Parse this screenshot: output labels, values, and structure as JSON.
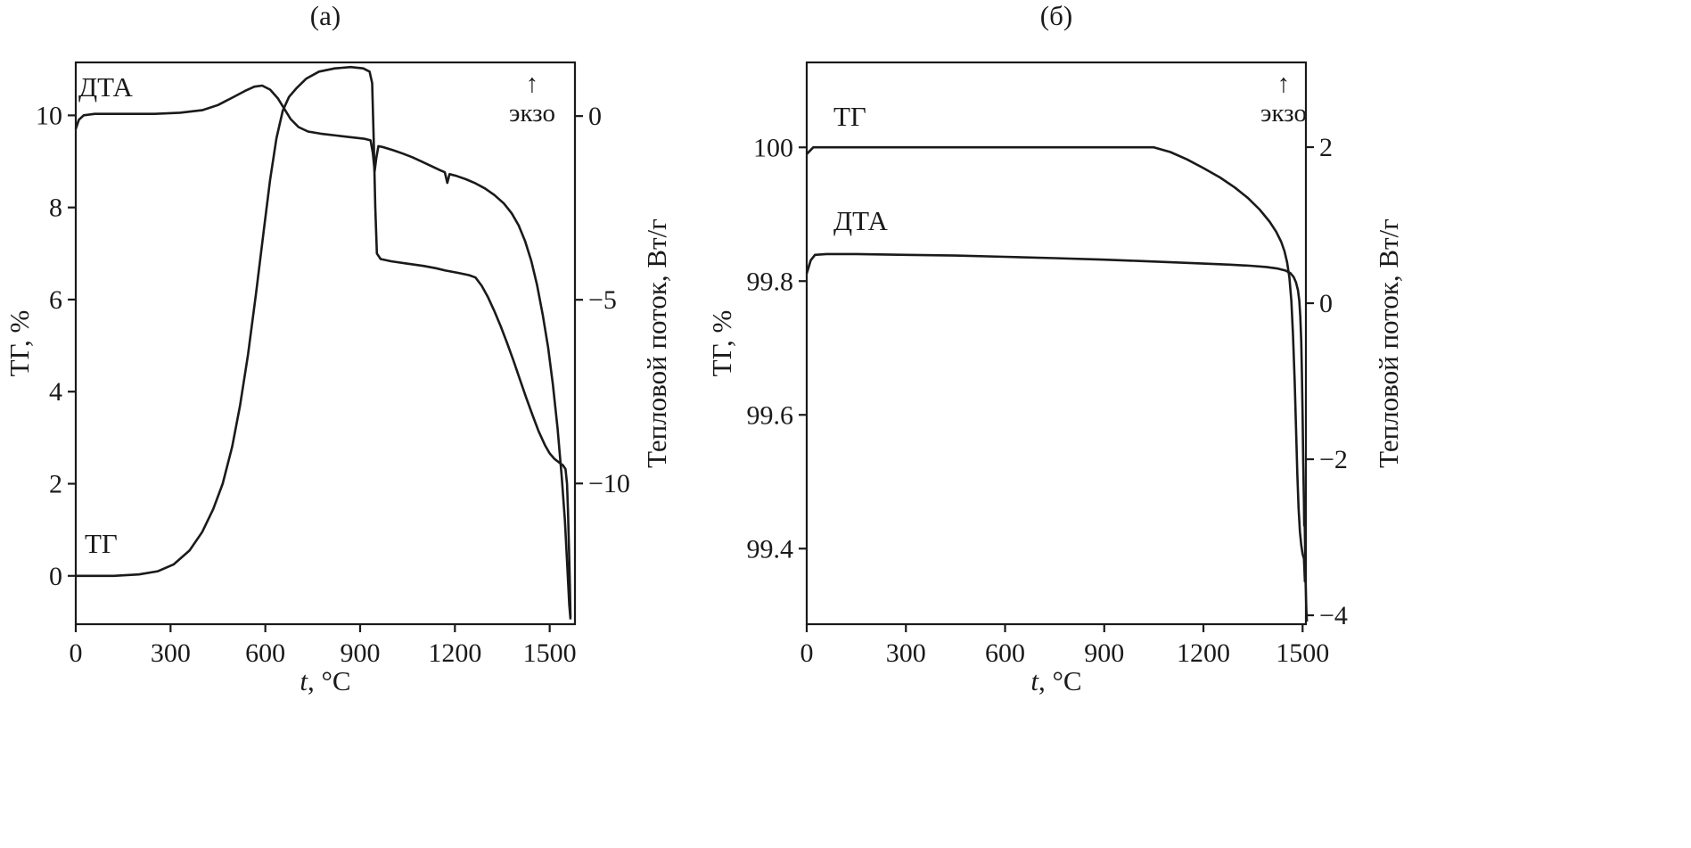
{
  "styles": {
    "line_color": "#1a1a1a",
    "axis_color": "#1a1a1a",
    "text_color": "#1a1a1a",
    "background": "#ffffff"
  },
  "chart_data": [
    {
      "id": "a",
      "type": "line",
      "title": "(а)",
      "x_axis": {
        "label_var": "t",
        "label_unit": ", °C",
        "lim": [
          0,
          1580
        ],
        "ticks": [
          {
            "value": 0,
            "label": "0"
          },
          {
            "value": 300,
            "label": "300"
          },
          {
            "value": 600,
            "label": "600"
          },
          {
            "value": 900,
            "label": "900"
          },
          {
            "value": 1200,
            "label": "1200"
          },
          {
            "value": 1500,
            "label": "1500"
          }
        ]
      },
      "y_left": {
        "label": "ТГ, %",
        "lim": [
          -1.05,
          11.15
        ],
        "ticks": [
          {
            "value": 0,
            "label": "0"
          },
          {
            "value": 2,
            "label": "2"
          },
          {
            "value": 4,
            "label": "4"
          },
          {
            "value": 6,
            "label": "6"
          },
          {
            "value": 8,
            "label": "8"
          },
          {
            "value": 10,
            "label": "10"
          }
        ]
      },
      "y_right": {
        "label": "Тепловой поток, Вт/г",
        "lim": [
          -13.83,
          1.46
        ],
        "exo_arrow": "↑",
        "exo_label": "экзо",
        "ticks": [
          {
            "value": 0,
            "label": "0"
          },
          {
            "value": -5,
            "label": "−5"
          },
          {
            "value": -10,
            "label": "−10"
          }
        ]
      },
      "curve_labels": [
        {
          "text": "ДТА"
        },
        {
          "text": "ТГ"
        }
      ],
      "series": [
        {
          "name": "ТГ",
          "axis": "left",
          "points": [
            [
              0,
              0
            ],
            [
              120,
              0
            ],
            [
              200,
              0.03
            ],
            [
              260,
              0.1
            ],
            [
              310,
              0.25
            ],
            [
              360,
              0.55
            ],
            [
              400,
              0.95
            ],
            [
              435,
              1.45
            ],
            [
              465,
              2.0
            ],
            [
              495,
              2.8
            ],
            [
              520,
              3.7
            ],
            [
              545,
              4.8
            ],
            [
              570,
              6.1
            ],
            [
              595,
              7.5
            ],
            [
              615,
              8.6
            ],
            [
              635,
              9.5
            ],
            [
              655,
              10.1
            ],
            [
              675,
              10.4
            ],
            [
              700,
              10.6
            ],
            [
              730,
              10.8
            ],
            [
              770,
              10.95
            ],
            [
              820,
              11.02
            ],
            [
              870,
              11.05
            ],
            [
              910,
              11.02
            ],
            [
              930,
              10.95
            ],
            [
              938,
              10.7
            ],
            [
              943,
              9.5
            ],
            [
              948,
              8.0
            ],
            [
              953,
              7.0
            ],
            [
              965,
              6.88
            ],
            [
              1000,
              6.83
            ],
            [
              1050,
              6.78
            ],
            [
              1100,
              6.73
            ],
            [
              1140,
              6.68
            ],
            [
              1170,
              6.63
            ],
            [
              1210,
              6.58
            ],
            [
              1245,
              6.53
            ],
            [
              1265,
              6.48
            ],
            [
              1285,
              6.3
            ],
            [
              1305,
              6.05
            ],
            [
              1325,
              5.75
            ],
            [
              1345,
              5.42
            ],
            [
              1365,
              5.06
            ],
            [
              1385,
              4.68
            ],
            [
              1405,
              4.28
            ],
            [
              1425,
              3.88
            ],
            [
              1445,
              3.5
            ],
            [
              1465,
              3.14
            ],
            [
              1485,
              2.84
            ],
            [
              1500,
              2.66
            ],
            [
              1515,
              2.54
            ],
            [
              1530,
              2.46
            ],
            [
              1542,
              2.4
            ],
            [
              1550,
              2.32
            ],
            [
              1555,
              2.0
            ],
            [
              1558,
              1.4
            ],
            [
              1561,
              0.6
            ],
            [
              1564,
              -0.2
            ],
            [
              1566,
              -0.9
            ]
          ]
        },
        {
          "name": "ДТА",
          "axis": "right",
          "points": [
            [
              0,
              -0.35
            ],
            [
              10,
              -0.1
            ],
            [
              25,
              0.02
            ],
            [
              60,
              0.06
            ],
            [
              150,
              0.06
            ],
            [
              250,
              0.06
            ],
            [
              330,
              0.09
            ],
            [
              400,
              0.16
            ],
            [
              450,
              0.3
            ],
            [
              495,
              0.5
            ],
            [
              535,
              0.68
            ],
            [
              565,
              0.8
            ],
            [
              590,
              0.83
            ],
            [
              615,
              0.72
            ],
            [
              640,
              0.48
            ],
            [
              660,
              0.2
            ],
            [
              680,
              -0.08
            ],
            [
              705,
              -0.3
            ],
            [
              735,
              -0.42
            ],
            [
              775,
              -0.48
            ],
            [
              825,
              -0.53
            ],
            [
              875,
              -0.58
            ],
            [
              915,
              -0.62
            ],
            [
              933,
              -0.66
            ],
            [
              940,
              -1.0
            ],
            [
              946,
              -1.5
            ],
            [
              951,
              -1.15
            ],
            [
              958,
              -0.82
            ],
            [
              975,
              -0.85
            ],
            [
              1005,
              -0.93
            ],
            [
              1035,
              -1.02
            ],
            [
              1065,
              -1.12
            ],
            [
              1095,
              -1.24
            ],
            [
              1125,
              -1.36
            ],
            [
              1152,
              -1.47
            ],
            [
              1168,
              -1.53
            ],
            [
              1176,
              -1.82
            ],
            [
              1183,
              -1.58
            ],
            [
              1205,
              -1.63
            ],
            [
              1235,
              -1.72
            ],
            [
              1265,
              -1.83
            ],
            [
              1295,
              -1.97
            ],
            [
              1325,
              -2.15
            ],
            [
              1355,
              -2.38
            ],
            [
              1380,
              -2.65
            ],
            [
              1402,
              -2.98
            ],
            [
              1422,
              -3.4
            ],
            [
              1442,
              -3.95
            ],
            [
              1460,
              -4.6
            ],
            [
              1478,
              -5.4
            ],
            [
              1495,
              -6.3
            ],
            [
              1510,
              -7.3
            ],
            [
              1525,
              -8.5
            ],
            [
              1538,
              -9.8
            ],
            [
              1548,
              -11.0
            ],
            [
              1556,
              -12.3
            ],
            [
              1562,
              -13.3
            ],
            [
              1566,
              -13.7
            ]
          ]
        }
      ]
    },
    {
      "id": "b",
      "type": "line",
      "title": "(б)",
      "x_axis": {
        "label_var": "t",
        "label_unit": ", °C",
        "lim": [
          0,
          1510
        ],
        "ticks": [
          {
            "value": 0,
            "label": "0"
          },
          {
            "value": 300,
            "label": "300"
          },
          {
            "value": 600,
            "label": "600"
          },
          {
            "value": 900,
            "label": "900"
          },
          {
            "value": 1200,
            "label": "1200"
          },
          {
            "value": 1500,
            "label": "1500"
          }
        ]
      },
      "y_left": {
        "label": "ТГ, %",
        "lim": [
          99.287,
          100.127
        ],
        "ticks": [
          {
            "value": 100,
            "label": "100"
          },
          {
            "value": 99.8,
            "label": "99.8"
          },
          {
            "value": 99.6,
            "label": "99.6"
          },
          {
            "value": 99.4,
            "label": "99.4"
          }
        ]
      },
      "y_right": {
        "label": "Тепловой поток, Вт/г",
        "lim": [
          -4.114,
          3.086
        ],
        "exo_arrow": "↑",
        "exo_label": "экзо",
        "ticks": [
          {
            "value": 2,
            "label": "2"
          },
          {
            "value": 0,
            "label": "0"
          },
          {
            "value": -2,
            "label": "−2"
          },
          {
            "value": -4,
            "label": "−4"
          }
        ]
      },
      "curve_labels": [
        {
          "text": "ТГ"
        },
        {
          "text": "ДТА"
        }
      ],
      "series": [
        {
          "name": "ТГ",
          "axis": "left",
          "points": [
            [
              0,
              99.99
            ],
            [
              20,
              100.0
            ],
            [
              100,
              100.0
            ],
            [
              300,
              100.0
            ],
            [
              600,
              100.0
            ],
            [
              900,
              100.0
            ],
            [
              1050,
              100.0
            ],
            [
              1100,
              99.993
            ],
            [
              1150,
              99.982
            ],
            [
              1200,
              99.969
            ],
            [
              1250,
              99.955
            ],
            [
              1295,
              99.94
            ],
            [
              1335,
              99.924
            ],
            [
              1370,
              99.907
            ],
            [
              1400,
              99.889
            ],
            [
              1420,
              99.874
            ],
            [
              1435,
              99.859
            ],
            [
              1445,
              99.845
            ],
            [
              1453,
              99.828
            ],
            [
              1460,
              99.805
            ],
            [
              1466,
              99.77
            ],
            [
              1471,
              99.72
            ],
            [
              1476,
              99.65
            ],
            [
              1480,
              99.58
            ],
            [
              1484,
              99.51
            ],
            [
              1488,
              99.46
            ],
            [
              1492,
              99.425
            ],
            [
              1496,
              99.405
            ],
            [
              1500,
              99.392
            ],
            [
              1504,
              99.385
            ],
            [
              1507,
              99.35
            ]
          ]
        },
        {
          "name": "ДТА",
          "axis": "right",
          "points": [
            [
              0,
              0.38
            ],
            [
              12,
              0.55
            ],
            [
              25,
              0.62
            ],
            [
              60,
              0.63
            ],
            [
              150,
              0.63
            ],
            [
              300,
              0.62
            ],
            [
              450,
              0.61
            ],
            [
              600,
              0.595
            ],
            [
              750,
              0.578
            ],
            [
              900,
              0.558
            ],
            [
              1000,
              0.542
            ],
            [
              1100,
              0.525
            ],
            [
              1200,
              0.508
            ],
            [
              1280,
              0.494
            ],
            [
              1340,
              0.48
            ],
            [
              1390,
              0.464
            ],
            [
              1425,
              0.444
            ],
            [
              1448,
              0.418
            ],
            [
              1463,
              0.385
            ],
            [
              1473,
              0.335
            ],
            [
              1480,
              0.265
            ],
            [
              1486,
              0.165
            ],
            [
              1490,
              0.03
            ],
            [
              1493,
              -0.17
            ],
            [
              1496,
              -0.5
            ],
            [
              1498,
              -0.9
            ],
            [
              1500,
              -1.45
            ],
            [
              1502,
              -2.05
            ],
            [
              1504,
              -2.55
            ],
            [
              1505,
              -2.85
            ],
            [
              1506,
              -2.7
            ],
            [
              1507,
              -3.0
            ],
            [
              1509,
              -3.55
            ],
            [
              1511,
              -3.9
            ],
            [
              1513,
              -4.08
            ]
          ]
        }
      ]
    }
  ]
}
